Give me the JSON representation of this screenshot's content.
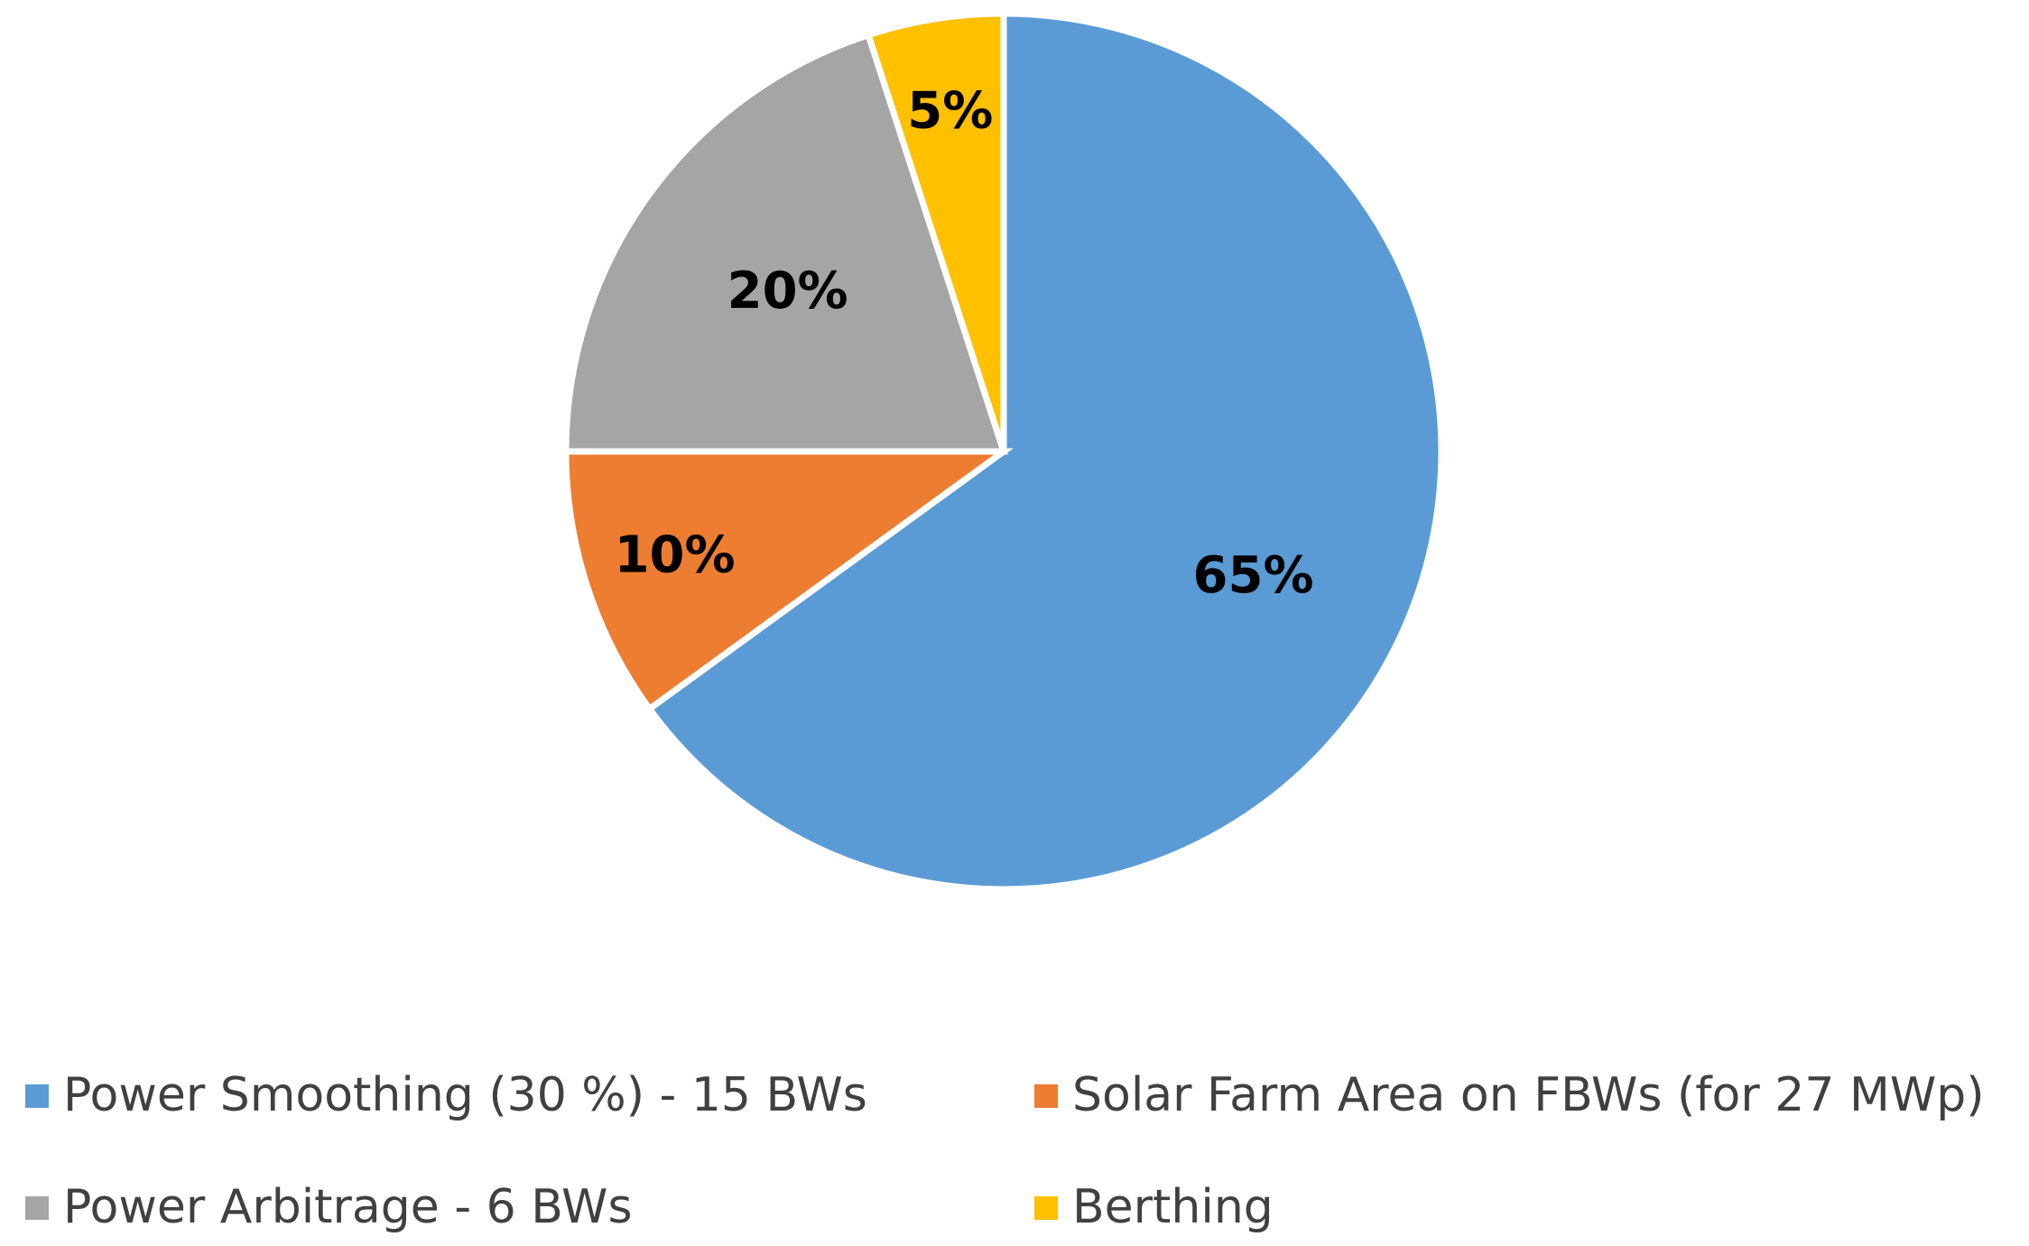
{
  "chart_data": {
    "type": "pie",
    "title": "",
    "legend_position": "bottom",
    "slices": [
      {
        "name": "Power Smoothing (30 %) - 15 BWs",
        "value": 65,
        "label": "65%",
        "color": "#5B9BD5"
      },
      {
        "name": "Solar Farm Area on FBWs (for 27 MWp)",
        "value": 10,
        "label": "10%",
        "color": "#ED7D31"
      },
      {
        "name": "Power Arbitrage - 6 BWs",
        "value": 20,
        "label": "20%",
        "color": "#A5A5A5"
      },
      {
        "name": "Berthing",
        "value": 5,
        "label": "5%",
        "color": "#FFC000"
      }
    ]
  }
}
